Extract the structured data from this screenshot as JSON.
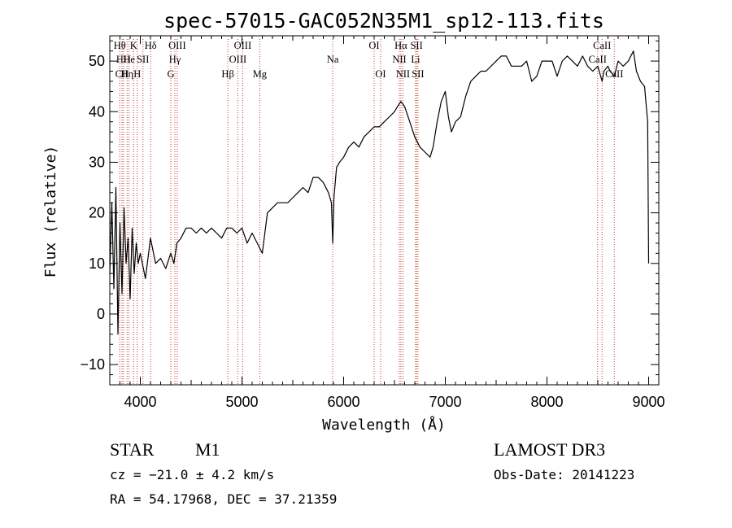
{
  "chart_data": {
    "type": "line",
    "title": "spec-57015-GAC052N35M1_sp12-113.fits",
    "xlabel": "Wavelength (Å)",
    "ylabel": "Flux (relative)",
    "xlim": [
      3700,
      9100
    ],
    "ylim": [
      -14,
      55
    ],
    "xticks": [
      "4000",
      "5000",
      "6000",
      "7000",
      "8000",
      "9000"
    ],
    "yticks": [
      "−10",
      "0",
      "10",
      "20",
      "30",
      "40",
      "50"
    ],
    "grid": false,
    "series": [
      {
        "x": [
          3700,
          3720,
          3740,
          3760,
          3780,
          3800,
          3820,
          3840,
          3860,
          3880,
          3900,
          3920,
          3940,
          3960,
          3980,
          4000,
          4050,
          4100,
          4150,
          4200,
          4250,
          4300,
          4330,
          4360,
          4400,
          4450,
          4500,
          4550,
          4600,
          4650,
          4700,
          4750,
          4800,
          4850,
          4900,
          4950,
          5000,
          5050,
          5100,
          5150,
          5200,
          5250,
          5300,
          5350,
          5400,
          5450,
          5500,
          5550,
          5600,
          5650,
          5700,
          5750,
          5800,
          5850,
          5880,
          5893,
          5905,
          5930,
          5960,
          6000,
          6050,
          6100,
          6150,
          6200,
          6250,
          6300,
          6350,
          6400,
          6450,
          6500,
          6530,
          6563,
          6600,
          6650,
          6700,
          6750,
          6800,
          6850,
          6880,
          6920,
          6960,
          7000,
          7030,
          7060,
          7100,
          7150,
          7200,
          7250,
          7300,
          7350,
          7400,
          7450,
          7500,
          7550,
          7600,
          7650,
          7700,
          7750,
          7800,
          7850,
          7900,
          7950,
          8000,
          8050,
          8100,
          8150,
          8200,
          8250,
          8300,
          8350,
          8400,
          8450,
          8500,
          8542,
          8560,
          8600,
          8620,
          8662,
          8700,
          8750,
          8800,
          8850,
          8880,
          8920,
          8960,
          8990,
          9000
        ],
        "y": [
          8,
          22,
          5,
          25,
          -4,
          18,
          4,
          21,
          10,
          15,
          3,
          17,
          8,
          14,
          10,
          12,
          7,
          15,
          10,
          11,
          9,
          12,
          10,
          14,
          15,
          17,
          17,
          16,
          17,
          16,
          17,
          16,
          15,
          17,
          17,
          16,
          17,
          14,
          16,
          14,
          12,
          20,
          21,
          22,
          22,
          22,
          23,
          24,
          25,
          24,
          27,
          27,
          26,
          24,
          22,
          14,
          23,
          29,
          30,
          31,
          33,
          34,
          33,
          35,
          36,
          37,
          37,
          38,
          39,
          40,
          41,
          42,
          41,
          38,
          35,
          33,
          32,
          31,
          33,
          38,
          42,
          44,
          39,
          36,
          38,
          39,
          43,
          46,
          47,
          48,
          48,
          49,
          50,
          51,
          51,
          49,
          49,
          49,
          50,
          46,
          47,
          50,
          50,
          50,
          47,
          50,
          51,
          50,
          49,
          51,
          49,
          48,
          49,
          46,
          48,
          49,
          48,
          47,
          50,
          49,
          50,
          52,
          48,
          46,
          45,
          38,
          10
        ]
      }
    ],
    "line_markers": [
      {
        "wl": 3798,
        "label": "Hθ",
        "row": 0
      },
      {
        "wl": 3835,
        "label": "HH",
        "row": 1
      },
      {
        "wl": 3820,
        "label": "CII",
        "row": 2
      },
      {
        "wl": 3870,
        "label": "Hη",
        "row": 2
      },
      {
        "wl": 3889,
        "label": "He",
        "row": 1
      },
      {
        "wl": 3934,
        "label": "K",
        "row": 0
      },
      {
        "wl": 3970,
        "label": "H",
        "row": 2
      },
      {
        "wl": 4026,
        "label": "SII",
        "row": 1
      },
      {
        "wl": 4102,
        "label": "Hδ",
        "row": 0
      },
      {
        "wl": 4300,
        "label": "G",
        "row": 2
      },
      {
        "wl": 4340,
        "label": "Hγ",
        "row": 1
      },
      {
        "wl": 4363,
        "label": "OIII",
        "row": 0
      },
      {
        "wl": 4861,
        "label": "Hβ",
        "row": 2
      },
      {
        "wl": 4959,
        "label": "OIII",
        "row": 1
      },
      {
        "wl": 5007,
        "label": "OIII",
        "row": 0
      },
      {
        "wl": 5175,
        "label": "Mg",
        "row": 2
      },
      {
        "wl": 5893,
        "label": "Na",
        "row": 1
      },
      {
        "wl": 6300,
        "label": "OI",
        "row": 0
      },
      {
        "wl": 6364,
        "label": "OI",
        "row": 2
      },
      {
        "wl": 6548,
        "label": "NII",
        "row": 1
      },
      {
        "wl": 6563,
        "label": "Hα",
        "row": 0
      },
      {
        "wl": 6583,
        "label": "NII",
        "row": 2
      },
      {
        "wl": 6707,
        "label": "Li",
        "row": 1
      },
      {
        "wl": 6717,
        "label": "SII",
        "row": 0
      },
      {
        "wl": 6731,
        "label": "SII",
        "row": 2
      },
      {
        "wl": 8498,
        "label": "CaII",
        "row": 1
      },
      {
        "wl": 8542,
        "label": "CaII",
        "row": 0
      },
      {
        "wl": 8662,
        "label": "CaII",
        "row": 2
      }
    ]
  },
  "info": {
    "object_class": "STAR",
    "subclass": "M1",
    "survey": "LAMOST DR3",
    "redshift": "cz = −21.0 ± 4.2 km/s",
    "obs_date": "Obs-Date: 20141223",
    "coords": "RA =  54.17968, DEC =  37.21359"
  },
  "colors": {
    "marker_line": "#c0392b",
    "spectrum": "#000000"
  }
}
